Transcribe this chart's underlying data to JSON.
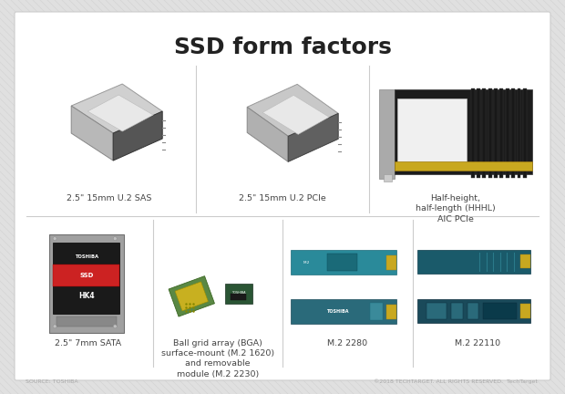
{
  "title": "SSD form factors",
  "title_fontsize": 18,
  "title_fontweight": "bold",
  "background_outer": "#e0e0e0",
  "background_card": "#ffffff",
  "grid_line_color": "#cccccc",
  "text_color": "#222222",
  "footer_left": "SOURCE: TOSHIBA",
  "footer_right": "©2018 TECHTARGET. ALL RIGHTS RESERVED.  TechTarget",
  "footer_color": "#aaaaaa",
  "label_fontsize": 6.8,
  "label_color": "#444444",
  "row1_labels": [
    "2.5\" 15mm U.2 SAS",
    "2.5\" 15mm U.2 PCIe",
    "Half-height,\nhalf-length (HHHL)\nAIC PCIe"
  ],
  "row2_labels": [
    "2.5\" 7mm SATA",
    "Ball grid array (BGA)\nsurface-mount (M.2 1620)\nand removable\nmodule (M.2 2230)",
    "M.2 2280",
    "M.2 22110"
  ]
}
